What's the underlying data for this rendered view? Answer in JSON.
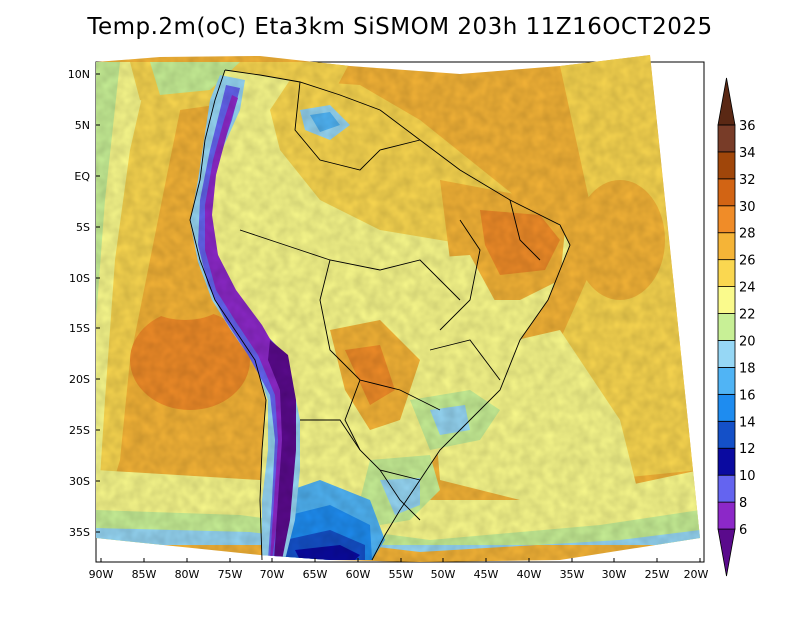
{
  "title": "Temp.2m(oC) Eta3km SiSMOM 203h 11Z16OCT2025",
  "lat_labels": [
    "10N",
    "5N",
    "EQ",
    "5S",
    "10S",
    "15S",
    "20S",
    "25S",
    "30S",
    "35S"
  ],
  "lon_labels": [
    "90W",
    "85W",
    "80W",
    "75W",
    "70W",
    "65W",
    "60W",
    "55W",
    "50W",
    "45W",
    "40W",
    "35W",
    "30W",
    "25W",
    "20W"
  ],
  "colorbar": {
    "labels": [
      "6",
      "8",
      "10",
      "12",
      "14",
      "16",
      "18",
      "20",
      "22",
      "24",
      "26",
      "28",
      "30",
      "32",
      "34",
      "36"
    ],
    "colors": [
      "#5a0a8c",
      "#8c28c8",
      "#6464f0",
      "#0a0aa0",
      "#1450c8",
      "#1e8cf0",
      "#50b4f5",
      "#96d7f5",
      "#c8f096",
      "#fafa8c",
      "#fad750",
      "#f5b437",
      "#f08c28",
      "#d26414",
      "#a0460a",
      "#783c28",
      "#5a2814"
    ]
  },
  "legend_units": "oC"
}
